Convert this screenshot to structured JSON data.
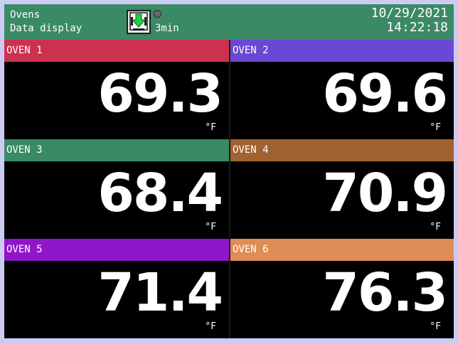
{
  "header": {
    "title_line1": "Ovens",
    "title_line2": "Data display",
    "interval": "3min",
    "date": "10/29/2021",
    "time": "14:22:18",
    "color": "#3a8a66",
    "icons": [
      "save-icon",
      "status-dot"
    ]
  },
  "channels": [
    {
      "label": "OVEN 1",
      "value": "69.3",
      "unit": "°F",
      "color": "#cd3150"
    },
    {
      "label": "OVEN 2",
      "value": "69.6",
      "unit": "°F",
      "color": "#6a48d4"
    },
    {
      "label": "OVEN 3",
      "value": "68.4",
      "unit": "°F",
      "color": "#3a8a66"
    },
    {
      "label": "OVEN 4",
      "value": "70.9",
      "unit": "°F",
      "color": "#a0622f"
    },
    {
      "label": "OVEN 5",
      "value": "71.4",
      "unit": "°F",
      "color": "#8f16c9"
    },
    {
      "label": "OVEN 6",
      "value": "76.3",
      "unit": "°F",
      "color": "#e08c56"
    }
  ]
}
